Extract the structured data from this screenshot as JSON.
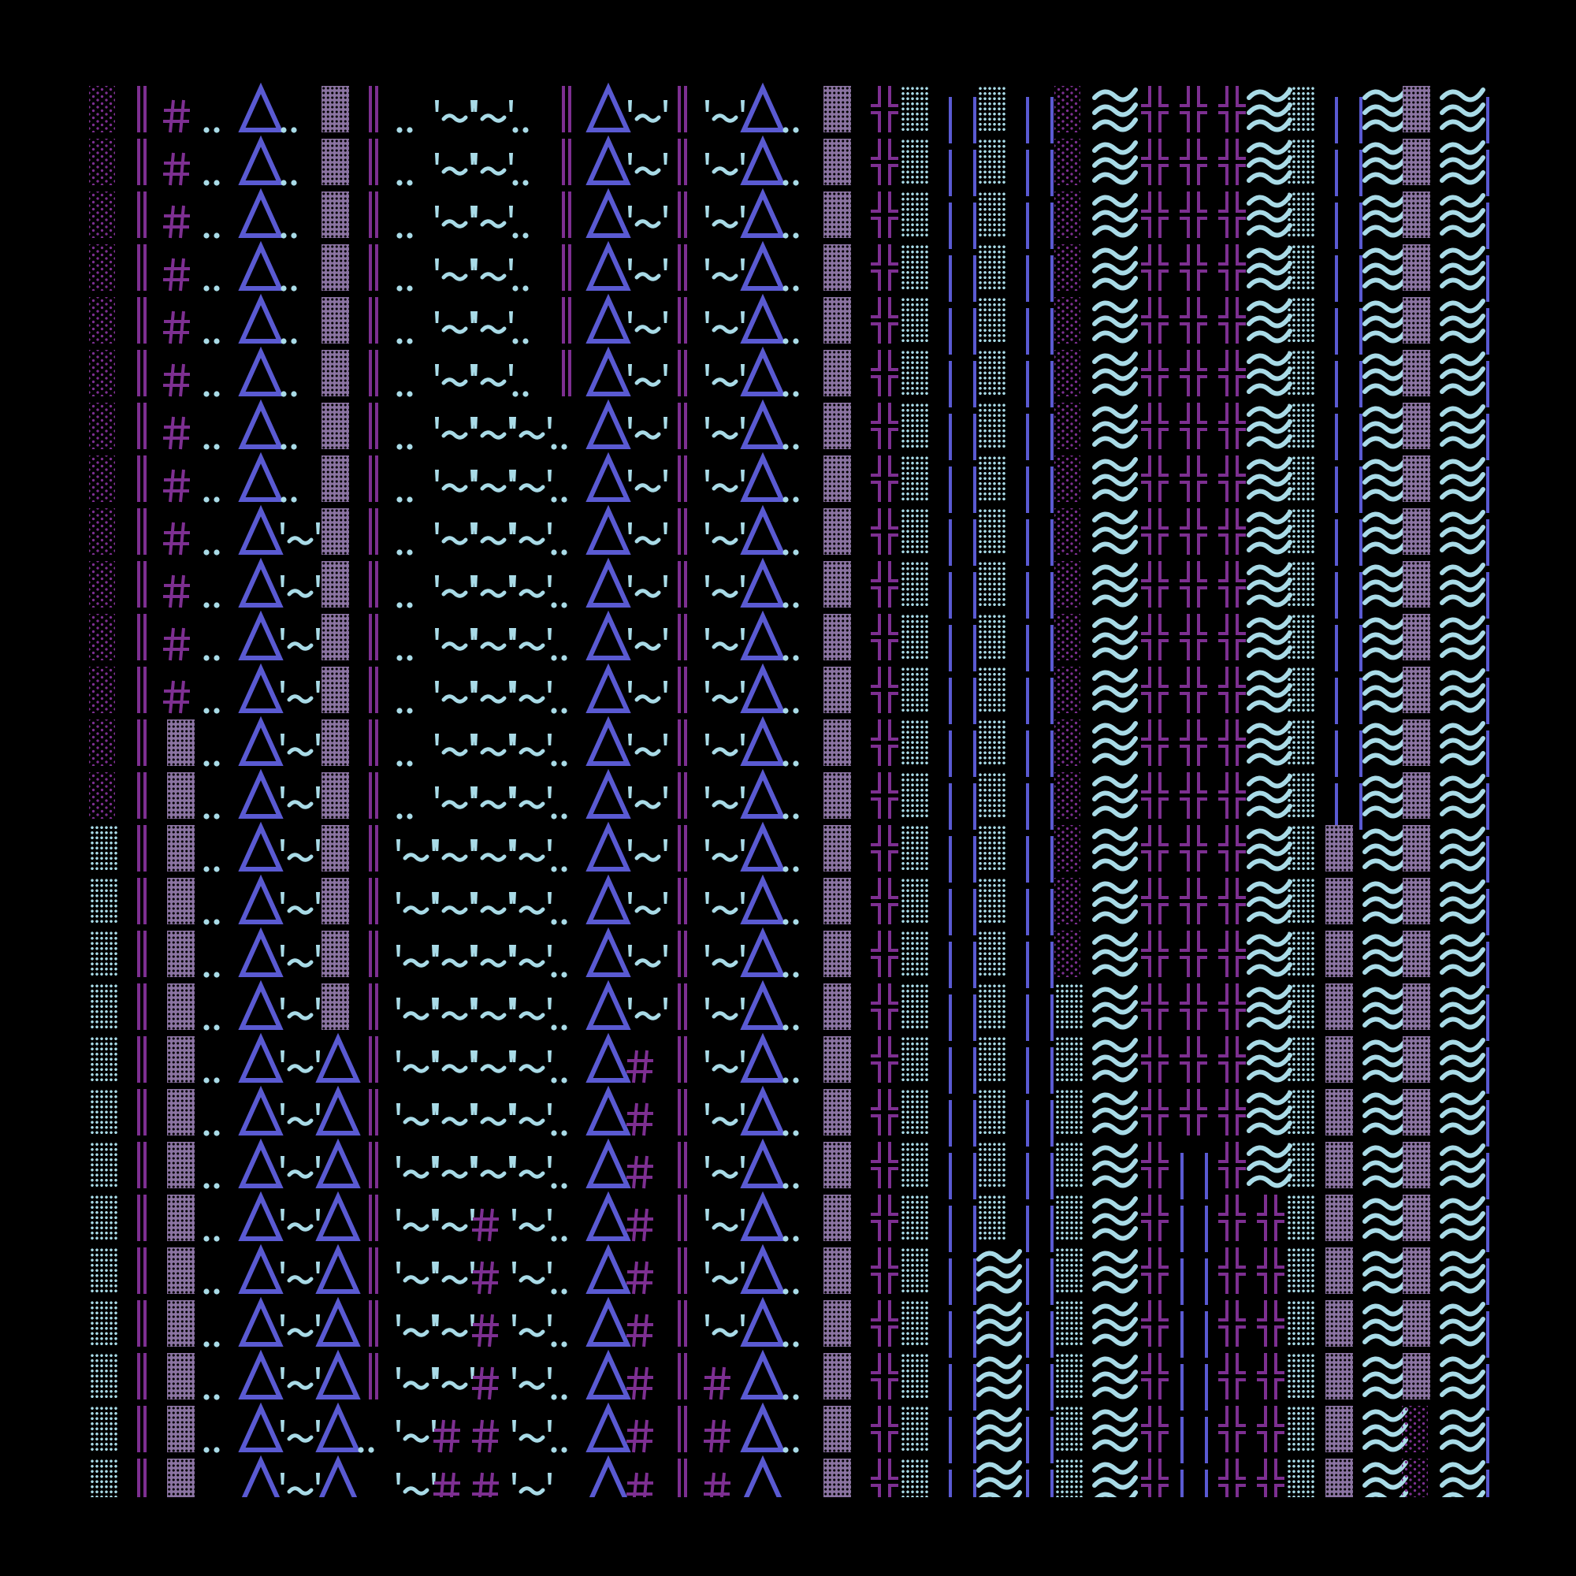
{
  "palette": {
    "background": "#000000",
    "purple": "#7d2f91",
    "periwinkle": "#5a5ad2",
    "light_blue": "#a9dbe7",
    "mauve": "#8b74a2"
  },
  "rows": [
    [
      "░",
      "║",
      "#",
      "‥",
      " ",
      "Δ",
      "‥",
      " ",
      "▓",
      "║",
      "‥",
      " ",
      "'~'",
      "'~'",
      "‥",
      " ",
      "║",
      "Δ",
      "'~'",
      "║",
      "'~'",
      "Δ",
      "‥",
      " ",
      "▓",
      "╬",
      "▒",
      "||",
      "▒",
      "||",
      "░",
      "≋",
      "╬",
      "╬",
      "╬",
      "≋",
      "▒",
      "||",
      "≋",
      "▓",
      "≋",
      "|"
    ],
    [
      "░",
      "║",
      "#",
      "‥",
      " ",
      "Δ",
      "‥",
      " ",
      "▓",
      "║",
      "‥",
      " ",
      "'~'",
      "'~'",
      "‥",
      " ",
      "║",
      "Δ",
      "'~'",
      "║",
      "'~'",
      "Δ",
      "‥",
      " ",
      "▓",
      "╬",
      "▒",
      "||",
      "▒",
      "||",
      "░",
      "≋",
      "╬",
      "╬",
      "╬",
      "≋",
      "▒",
      "||",
      "≋",
      "▓",
      "≋",
      "|"
    ],
    [
      "░",
      "║",
      "#",
      "‥",
      " ",
      "Δ",
      "‥",
      " ",
      "▓",
      "║",
      "‥",
      " ",
      "'~'",
      "'~'",
      "‥",
      " ",
      "║",
      "Δ",
      "'~'",
      "║",
      "'~'",
      "Δ",
      "‥",
      " ",
      "▓",
      "╬",
      "▒",
      "||",
      "▒",
      "||",
      "░",
      "≋",
      "╬",
      "╬",
      "╬",
      "≋",
      "▒",
      "||",
      "≋",
      "▓",
      "≋",
      "|"
    ],
    [
      "░",
      "║",
      "#",
      "‥",
      " ",
      "Δ",
      "‥",
      " ",
      "▓",
      "║",
      "‥",
      " ",
      "'~'",
      "'~'",
      "‥",
      " ",
      "║",
      "Δ",
      "'~'",
      "║",
      "'~'",
      "Δ",
      "‥",
      " ",
      "▓",
      "╬",
      "▒",
      "||",
      "▒",
      "||",
      "░",
      "≋",
      "╬",
      "╬",
      "╬",
      "≋",
      "▒",
      "||",
      "≋",
      "▓",
      "≋",
      "|"
    ],
    [
      "░",
      "║",
      "#",
      "‥",
      " ",
      "Δ",
      "‥",
      " ",
      "▓",
      "║",
      "‥",
      " ",
      "'~'",
      "'~'",
      "‥",
      " ",
      "║",
      "Δ",
      "'~'",
      "║",
      "'~'",
      "Δ",
      "‥",
      " ",
      "▓",
      "╬",
      "▒",
      "||",
      "▒",
      "||",
      "░",
      "≋",
      "╬",
      "╬",
      "╬",
      "≋",
      "▒",
      "||",
      "≋",
      "▓",
      "≋",
      "|"
    ],
    [
      "░",
      "║",
      "#",
      "‥",
      " ",
      "Δ",
      "‥",
      " ",
      "▓",
      "║",
      "‥",
      " ",
      "'~'",
      "'~'",
      "‥",
      " ",
      "║",
      "Δ",
      "'~'",
      "║",
      "'~'",
      "Δ",
      "‥",
      " ",
      "▓",
      "╬",
      "▒",
      "||",
      "▒",
      "||",
      "░",
      "≋",
      "╬",
      "╬",
      "╬",
      "≋",
      "▒",
      "||",
      "≋",
      "▓",
      "≋",
      "|"
    ],
    [
      "░",
      "║",
      "#",
      "‥",
      " ",
      "Δ",
      "‥",
      " ",
      "▓",
      "║",
      "‥",
      " ",
      "'~'",
      "'~'",
      "'~'",
      "‥",
      " ",
      "Δ",
      "'~'",
      "║",
      "'~'",
      "Δ",
      "‥",
      " ",
      "▓",
      "╬",
      "▒",
      "||",
      "▒",
      "||",
      "░",
      "≋",
      "╬",
      "╬",
      "╬",
      "≋",
      "▒",
      "||",
      "≋",
      "▓",
      "≋",
      "|"
    ],
    [
      "░",
      "║",
      "#",
      "‥",
      " ",
      "Δ",
      "‥",
      " ",
      "▓",
      "║",
      "‥",
      " ",
      "'~'",
      "'~'",
      "'~'",
      "‥",
      " ",
      "Δ",
      "'~'",
      "║",
      "'~'",
      "Δ",
      "‥",
      " ",
      "▓",
      "╬",
      "▒",
      "||",
      "▒",
      "||",
      "░",
      "≋",
      "╬",
      "╬",
      "╬",
      "≋",
      "▒",
      "||",
      "≋",
      "▓",
      "≋",
      "|"
    ],
    [
      "░",
      "║",
      "#",
      "‥",
      " ",
      "Δ",
      "'~'",
      "▓",
      "║",
      "‥",
      " ",
      "'~'",
      "'~'",
      "'~'",
      "‥",
      " ",
      "Δ",
      "'~'",
      "║",
      "'~'",
      "Δ",
      "‥",
      " ",
      "▓",
      "╬",
      "▒",
      "||",
      "▒",
      "||",
      "░",
      "≋",
      "╬",
      "╬",
      "╬",
      "≋",
      "▒",
      "||",
      "≋",
      "▓",
      "≋",
      "|"
    ],
    [
      "░",
      "║",
      "#",
      "‥",
      " ",
      "Δ",
      "'~'",
      "▓",
      "║",
      "‥",
      " ",
      "'~'",
      "'~'",
      "'~'",
      "‥",
      " ",
      "Δ",
      "'~'",
      "║",
      "'~'",
      "Δ",
      "‥",
      " ",
      "▓",
      "╬",
      "▒",
      "||",
      "▒",
      "||",
      "░",
      "≋",
      "╬",
      "╬",
      "╬",
      "≋",
      "▒",
      "||",
      "≋",
      "▓",
      "≋",
      "|"
    ],
    [
      "░",
      "║",
      "#",
      "‥",
      " ",
      "Δ",
      "'~'",
      "▓",
      "║",
      "‥",
      " ",
      "'~'",
      "'~'",
      "'~'",
      "‥",
      " ",
      "Δ",
      "'~'",
      "║",
      "'~'",
      "Δ",
      "‥",
      " ",
      "▓",
      "╬",
      "▒",
      "||",
      "▒",
      "||",
      "░",
      "≋",
      "╬",
      "╬",
      "╬",
      "≋",
      "▒",
      "||",
      "≋",
      "▓",
      "≋",
      "|"
    ],
    [
      "░",
      "║",
      "#",
      "‥",
      " ",
      "Δ",
      "'~'",
      "▓",
      "║",
      "‥",
      " ",
      "'~'",
      "'~'",
      "'~'",
      "‥",
      " ",
      "Δ",
      "'~'",
      "║",
      "'~'",
      "Δ",
      "‥",
      " ",
      "▓",
      "╬",
      "▒",
      "||",
      "▒",
      "||",
      "░",
      "≋",
      "╬",
      "╬",
      "╬",
      "≋",
      "▒",
      "||",
      "≋",
      "▓",
      "≋",
      "|"
    ],
    [
      "░",
      "║",
      "▓",
      "‥",
      " ",
      "Δ",
      "'~'",
      "▓",
      "║",
      "‥",
      " ",
      "'~'",
      "'~'",
      "'~'",
      "‥",
      " ",
      "Δ",
      "'~'",
      "║",
      "'~'",
      "Δ",
      "‥",
      " ",
      "▓",
      "╬",
      "▒",
      "||",
      "▒",
      "||",
      "░",
      "≋",
      "╬",
      "╬",
      "╬",
      "≋",
      "▒",
      "||",
      "≋",
      "▓",
      "≋",
      "|"
    ],
    [
      "░",
      "║",
      "▓",
      "‥",
      " ",
      "Δ",
      "'~'",
      "▓",
      "║",
      "‥",
      " ",
      "'~'",
      "'~'",
      "'~'",
      "‥",
      " ",
      "Δ",
      "'~'",
      "║",
      "'~'",
      "Δ",
      "‥",
      " ",
      "▓",
      "╬",
      "▒",
      "||",
      "▒",
      "||",
      "░",
      "≋",
      "╬",
      "╬",
      "╬",
      "≋",
      "▒",
      "||",
      "≋",
      "▓",
      "≋",
      "|"
    ],
    [
      "▒",
      "║",
      "▓",
      "‥",
      " ",
      "Δ",
      "'~'",
      "▓",
      "║",
      "'~'",
      "'~'",
      "'~'",
      "'~'",
      "‥",
      " ",
      "Δ",
      "'~'",
      "║",
      "'~'",
      "Δ",
      "‥",
      " ",
      "▓",
      "╬",
      "▒",
      "||",
      "▒",
      "||",
      "░",
      "≋",
      "╬",
      "╬",
      "╬",
      "≋",
      "▒",
      "▓",
      "≋",
      "▓",
      "≋",
      "|"
    ],
    [
      "▒",
      "║",
      "▓",
      "‥",
      " ",
      "Δ",
      "'~'",
      "▓",
      "║",
      "'~'",
      "'~'",
      "'~'",
      "'~'",
      "‥",
      " ",
      "Δ",
      "'~'",
      "║",
      "'~'",
      "Δ",
      "‥",
      " ",
      "▓",
      "╬",
      "▒",
      "||",
      "▒",
      "||",
      "░",
      "≋",
      "╬",
      "╬",
      "╬",
      "≋",
      "▒",
      "▓",
      "≋",
      "▓",
      "≋",
      "|"
    ],
    [
      "▒",
      "║",
      "▓",
      "‥",
      " ",
      "Δ",
      "'~'",
      "▓",
      "║",
      "'~'",
      "'~'",
      "'~'",
      "'~'",
      "‥",
      " ",
      "Δ",
      "'~'",
      "║",
      "'~'",
      "Δ",
      "‥",
      " ",
      "▓",
      "╬",
      "▒",
      "||",
      "▒",
      "||",
      "░",
      "≋",
      "╬",
      "╬",
      "╬",
      "≋",
      "▒",
      "▓",
      "≋",
      "▓",
      "≋",
      "|"
    ],
    [
      "▒",
      "║",
      "▓",
      "‥",
      " ",
      "Δ",
      "'~'",
      "▓",
      "║",
      "'~'",
      "'~'",
      "'~'",
      "'~'",
      "‥",
      " ",
      "Δ",
      "'~'",
      "║",
      "'~'",
      "Δ",
      "‥",
      " ",
      "▓",
      "╬",
      "▒",
      "||",
      "▒",
      "||",
      "▒",
      "≋",
      "╬",
      "╬",
      "╬",
      "≋",
      "▒",
      "▓",
      "≋",
      "▓",
      "≋",
      "|"
    ],
    [
      "▒",
      "║",
      "▓",
      "‥",
      " ",
      "Δ",
      "'~'",
      "Δ",
      "║",
      "'~'",
      "'~'",
      "'~'",
      "'~'",
      "‥",
      " ",
      "Δ",
      "#",
      "║",
      "'~'",
      "Δ",
      "‥",
      " ",
      "▓",
      "╬",
      "▒",
      "||",
      "▒",
      "||",
      "▒",
      "≋",
      "╬",
      "╬",
      "╬",
      "≋",
      "▒",
      "▓",
      "≋",
      "▓",
      "≋",
      "|"
    ],
    [
      "▒",
      "║",
      "▓",
      "‥",
      " ",
      "Δ",
      "'~'",
      "Δ",
      "║",
      "'~'",
      "'~'",
      "'~'",
      "'~'",
      "‥",
      " ",
      "Δ",
      "#",
      "║",
      "'~'",
      "Δ",
      "‥",
      " ",
      "▓",
      "╬",
      "▒",
      "||",
      "▒",
      "||",
      "▒",
      "≋",
      "╬",
      "╬",
      "╬",
      "≋",
      "▒",
      "▓",
      "≋",
      "▓",
      "≋",
      "|"
    ],
    [
      "▒",
      "║",
      "▓",
      "‥",
      " ",
      "Δ",
      "'~'",
      "Δ",
      "║",
      "'~'",
      "'~'",
      "'~'",
      "'~'",
      "‥",
      " ",
      "Δ",
      "#",
      "║",
      "'~'",
      "Δ",
      "‥",
      " ",
      "▓",
      "╬",
      "▒",
      "||",
      "▒",
      "||",
      "▒",
      "≋",
      "╬",
      "||",
      "╬",
      "≋",
      "▒",
      "▓",
      "≋",
      "▓",
      "≋",
      "|"
    ],
    [
      "▒",
      "║",
      "▓",
      "‥",
      " ",
      "Δ",
      "'~'",
      "Δ",
      "║",
      "'~'",
      "'~'",
      "#",
      "'~'",
      "‥",
      " ",
      "Δ",
      "#",
      "║",
      "'~'",
      "Δ",
      "‥",
      " ",
      "▓",
      "╬",
      "▒",
      "||",
      "▒",
      "||",
      "▒",
      "≋",
      "╬",
      "||",
      "╬",
      "╬",
      "▒",
      "▓",
      "≋",
      "▓",
      "≋",
      "|"
    ],
    [
      "▒",
      "║",
      "▓",
      "‥",
      " ",
      "Δ",
      "'~'",
      "Δ",
      "║",
      "'~'",
      "'~'",
      "#",
      "'~'",
      "‥",
      " ",
      "Δ",
      "#",
      "║",
      "'~'",
      "Δ",
      "‥",
      " ",
      "▓",
      "╬",
      "▒",
      "||",
      "≋",
      "||",
      "▒",
      "≋",
      "╬",
      "||",
      "╬",
      "╬",
      "▒",
      "▓",
      "≋",
      "▓",
      "≋",
      "|"
    ],
    [
      "▒",
      "║",
      "▓",
      "‥",
      " ",
      "Δ",
      "'~'",
      "Δ",
      "║",
      "'~'",
      "'~'",
      "#",
      "'~'",
      "‥",
      " ",
      "Δ",
      "#",
      "║",
      "'~'",
      "Δ",
      "‥",
      " ",
      "▓",
      "╬",
      "▒",
      "||",
      "≋",
      "||",
      "▒",
      "≋",
      "╬",
      "||",
      "╬",
      "╬",
      "▒",
      "▓",
      "≋",
      "▓",
      "≋",
      "|"
    ],
    [
      "▒",
      "║",
      "▓",
      "‥",
      " ",
      "Δ",
      "'~'",
      "Δ",
      "║",
      "'~'",
      "'~'",
      "#",
      "'~'",
      "‥",
      " ",
      "Δ",
      "#",
      "║",
      "#",
      "Δ",
      "‥",
      " ",
      "▓",
      "╬",
      "▒",
      "||",
      "≋",
      "||",
      "▒",
      "≋",
      "╬",
      "||",
      "╬",
      "╬",
      "▒",
      "▓",
      "≋",
      "▓",
      "≋",
      "|"
    ],
    [
      "▒",
      "║",
      "▓",
      "‥",
      " ",
      "Δ",
      "'~'",
      "Δ",
      "‥",
      " ",
      "'~'",
      "#",
      "#",
      "'~'",
      "‥",
      " ",
      "Δ",
      "#",
      "║",
      "#",
      "Δ",
      "‥",
      " ",
      "▓",
      "╬",
      "▒",
      "||",
      "≋",
      "||",
      "▒",
      "≋",
      "╬",
      "||",
      "╬",
      "╬",
      "▒",
      "▓",
      "≋",
      "░",
      "≋",
      "|"
    ],
    [
      "▒",
      "║",
      "▓",
      "‥",
      " ",
      "Δ",
      "'~'",
      "Δ",
      "‥",
      " ",
      "'~'",
      "#",
      "#",
      "'~'",
      "‥",
      " ",
      "Δ",
      "#",
      "║",
      "#",
      "Δ",
      "‥",
      " ",
      "▓",
      "╬",
      "▒",
      "||",
      "≋",
      "||",
      "▒",
      "≋",
      "╬",
      "||",
      "╬",
      "╬",
      "▒",
      "▓",
      "≋",
      "░",
      "≋",
      "|"
    ]
  ]
}
